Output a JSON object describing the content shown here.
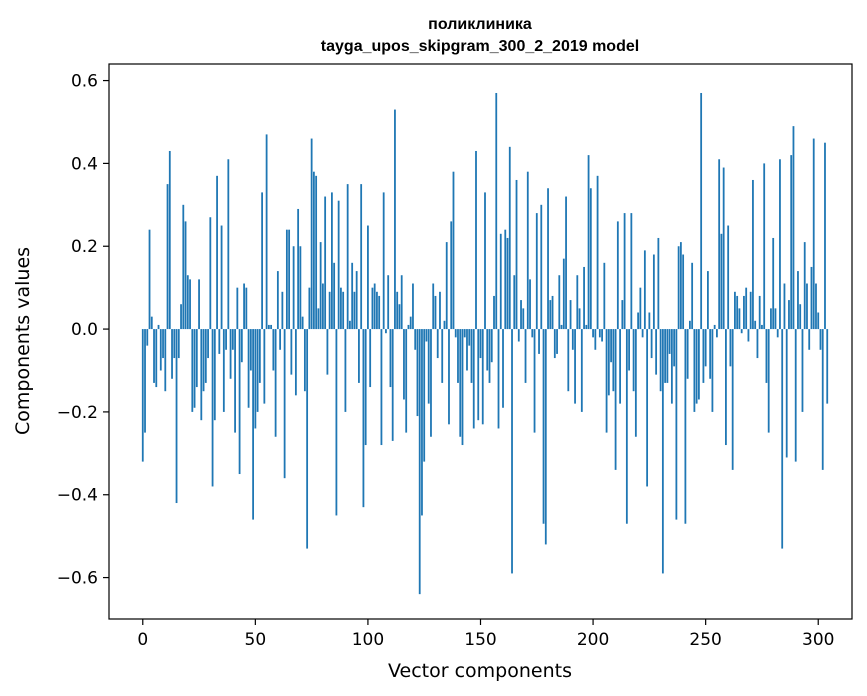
{
  "chart_data": {
    "type": "bar",
    "title": "поликлиника",
    "subtitle": "tayga_upos_skipgram_300_2_2019 model",
    "xlabel": "Vector components",
    "ylabel": "Components values",
    "xlim": [
      -15,
      315
    ],
    "ylim": [
      -0.7,
      0.64
    ],
    "xticks": [
      0,
      50,
      100,
      150,
      200,
      250,
      300
    ],
    "xtick_labels": [
      "0",
      "50",
      "100",
      "150",
      "200",
      "250",
      "300"
    ],
    "yticks": [
      -0.6,
      -0.4,
      -0.2,
      0.0,
      0.2,
      0.4,
      0.6
    ],
    "ytick_labels": [
      "−0.6",
      "−0.4",
      "−0.2",
      "0.0",
      "0.2",
      "0.4",
      "0.6"
    ],
    "bar_color": "#1f77b4",
    "grid": false,
    "legend": "none",
    "x_start": 0,
    "values": [
      -0.32,
      -0.25,
      -0.04,
      0.24,
      0.03,
      -0.13,
      -0.14,
      0.01,
      -0.1,
      -0.07,
      -0.15,
      0.35,
      0.43,
      -0.12,
      -0.07,
      -0.42,
      -0.07,
      0.06,
      0.3,
      0.26,
      0.13,
      0.12,
      -0.2,
      -0.19,
      -0.14,
      0.12,
      -0.22,
      -0.15,
      -0.13,
      -0.07,
      0.27,
      -0.38,
      -0.22,
      0.37,
      -0.06,
      0.25,
      -0.2,
      -0.05,
      0.41,
      -0.12,
      -0.05,
      -0.25,
      0.1,
      -0.35,
      -0.08,
      0.11,
      0.1,
      -0.19,
      -0.1,
      -0.46,
      -0.24,
      -0.2,
      -0.13,
      0.33,
      -0.18,
      0.47,
      0.01,
      0.01,
      -0.1,
      -0.26,
      0.14,
      -0.05,
      0.09,
      -0.36,
      0.24,
      0.24,
      -0.11,
      0.2,
      -0.16,
      0.29,
      0.2,
      0.03,
      -0.15,
      -0.53,
      0.1,
      0.46,
      0.38,
      0.37,
      0.05,
      0.21,
      0.11,
      0.32,
      -0.11,
      0.09,
      0.33,
      0.16,
      -0.45,
      0.31,
      0.1,
      0.09,
      -0.2,
      0.35,
      0.02,
      0.16,
      0.09,
      0.14,
      -0.13,
      0.35,
      -0.43,
      -0.28,
      0.25,
      -0.14,
      0.1,
      0.11,
      0.09,
      0.08,
      -0.28,
      0.33,
      -0.01,
      0.13,
      -0.14,
      -0.27,
      0.53,
      0.09,
      0.06,
      0.13,
      -0.17,
      -0.25,
      0.01,
      0.03,
      0.11,
      -0.05,
      -0.21,
      -0.64,
      -0.45,
      -0.32,
      -0.03,
      -0.18,
      -0.26,
      0.11,
      0.08,
      -0.07,
      0.09,
      -0.13,
      0.02,
      0.21,
      -0.23,
      0.26,
      0.38,
      -0.02,
      -0.13,
      -0.26,
      -0.28,
      -0.02,
      -0.1,
      -0.04,
      -0.13,
      -0.24,
      0.43,
      -0.22,
      -0.07,
      -0.23,
      0.33,
      -0.1,
      -0.13,
      -0.08,
      0.08,
      0.57,
      -0.24,
      0.23,
      -0.19,
      0.24,
      0.22,
      0.44,
      -0.59,
      0.13,
      0.36,
      -0.03,
      0.07,
      0.05,
      -0.13,
      0.38,
      0.12,
      -0.02,
      -0.25,
      0.28,
      -0.06,
      0.3,
      -0.47,
      -0.52,
      0.34,
      0.07,
      0.08,
      -0.07,
      -0.06,
      0.13,
      0.01,
      0.17,
      0.32,
      -0.15,
      0.07,
      -0.05,
      -0.18,
      0.13,
      0.05,
      -0.2,
      0.15,
      0.01,
      0.42,
      0.34,
      -0.02,
      -0.05,
      0.37,
      -0.02,
      -0.03,
      0.16,
      -0.25,
      -0.16,
      -0.08,
      -0.15,
      -0.34,
      0.26,
      -0.18,
      0.07,
      0.28,
      -0.47,
      -0.1,
      0.28,
      -0.15,
      -0.26,
      0.04,
      0.1,
      -0.02,
      0.19,
      -0.38,
      0.04,
      -0.07,
      0.18,
      -0.11,
      0.22,
      -0.15,
      -0.59,
      -0.13,
      -0.13,
      -0.06,
      -0.18,
      -0.09,
      -0.46,
      0.2,
      0.21,
      0.18,
      -0.47,
      -0.12,
      0.02,
      0.16,
      -0.2,
      -0.18,
      -0.17,
      0.57,
      -0.13,
      -0.09,
      0.14,
      -0.12,
      -0.2,
      0.01,
      -0.02,
      0.41,
      0.23,
      0.39,
      -0.28,
      0.25,
      -0.09,
      -0.34,
      0.09,
      0.08,
      0.05,
      -0.01,
      0.08,
      0.1,
      -0.03,
      0.09,
      0.36,
      0.02,
      -0.07,
      0.08,
      0.01,
      0.4,
      -0.13,
      -0.25,
      0.05,
      0.22,
      0.05,
      -0.02,
      0.41,
      -0.53,
      0.11,
      -0.31,
      0.07,
      0.42,
      0.49,
      -0.32,
      0.14,
      0.06,
      -0.2,
      0.21,
      0.11,
      -0.05,
      0.15,
      0.46,
      0.11,
      0.04,
      -0.05,
      -0.34,
      0.45,
      -0.18
    ]
  }
}
